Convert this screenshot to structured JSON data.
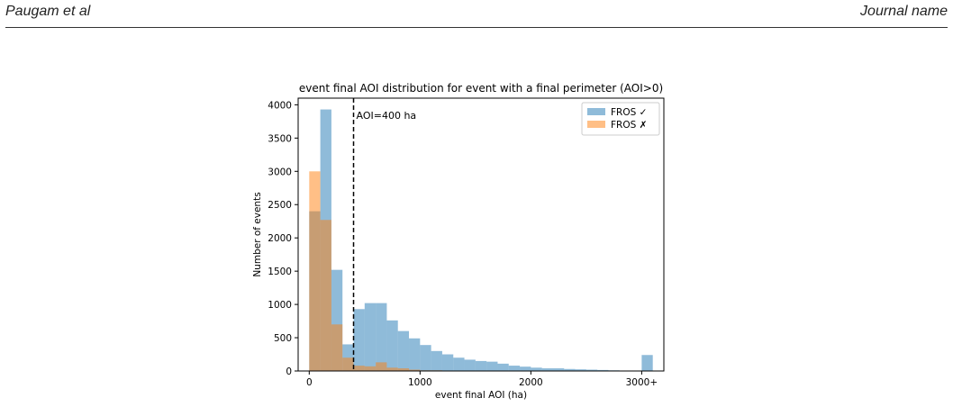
{
  "header": {
    "author": "Paugam et al",
    "journal": "Journal name"
  },
  "chart_data": {
    "type": "histogram",
    "title": "event final AOI distribution for event with a final perimeter (AOI>0)",
    "xlabel": "event final AOI (ha)",
    "ylabel": "Number of events",
    "xlim": [
      -100,
      3200
    ],
    "ylim": [
      0,
      4100
    ],
    "xticks": [
      0,
      1000,
      2000,
      3000
    ],
    "xtick_labels": [
      "0",
      "1000",
      "2000",
      "3000+"
    ],
    "yticks": [
      0,
      500,
      1000,
      1500,
      2000,
      2500,
      3000,
      3500,
      4000
    ],
    "bin_edges": [
      0,
      100,
      200,
      300,
      400,
      500,
      600,
      700,
      800,
      900,
      1000,
      1100,
      1200,
      1300,
      1400,
      1500,
      1600,
      1700,
      1800,
      1900,
      2000,
      2100,
      2200,
      2300,
      2400,
      2500,
      2600,
      2700,
      2800,
      2900,
      3000,
      3100
    ],
    "series": [
      {
        "name": "FROS ✓",
        "color": "#1f77b4",
        "values": [
          2400,
          3930,
          1520,
          400,
          930,
          1020,
          1020,
          760,
          600,
          490,
          390,
          300,
          250,
          200,
          170,
          150,
          140,
          110,
          80,
          65,
          50,
          40,
          40,
          30,
          25,
          20,
          15,
          10,
          5,
          0,
          240
        ]
      },
      {
        "name": "FROS ✗",
        "color": "#ff7f0e",
        "values": [
          3000,
          2270,
          700,
          200,
          80,
          70,
          130,
          50,
          40,
          20,
          10,
          10,
          5,
          5,
          5,
          0,
          0,
          0,
          0,
          0,
          0,
          0,
          0,
          0,
          0,
          0,
          0,
          0,
          0,
          0,
          0
        ]
      }
    ],
    "annotations": [
      {
        "x": 400,
        "text": "AOI=400 ha"
      }
    ],
    "legend_position": "top-right",
    "grid": false
  }
}
